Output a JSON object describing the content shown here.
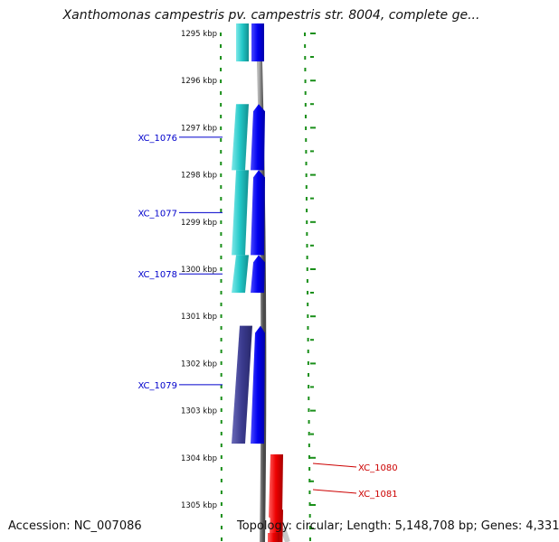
{
  "title": "Xanthomonas campestris pv. campestris str. 8004, complete ge...",
  "accession": {
    "label": "Accession:",
    "value": "NC_007086"
  },
  "topology": {
    "label": "Topology:",
    "value": "circular;",
    "length_label": "Length:",
    "length_value": "5,148,708 bp;",
    "genes_label": "Genes:",
    "genes_value": "4,331"
  },
  "ruler": {
    "labels": [
      "1295 kbp",
      "1296 kbp",
      "1297 kbp",
      "1298 kbp",
      "1299 kbp",
      "1300 kbp",
      "1301 kbp",
      "1302 kbp",
      "1303 kbp",
      "1304 kbp",
      "1305 kbp"
    ],
    "kbp": [
      1295,
      1296,
      1297,
      1298,
      1299,
      1300,
      1301,
      1302,
      1303,
      1304,
      1305
    ]
  },
  "genes": [
    {
      "label": "XC_1076",
      "strand": "forward",
      "start_kbp": 1296.5,
      "end_kbp": 1297.9,
      "color": "#0000ee",
      "label_color": "#0000cc"
    },
    {
      "label": "XC_1077",
      "strand": "forward",
      "start_kbp": 1297.9,
      "end_kbp": 1299.7,
      "color": "#0000ee",
      "label_color": "#0000cc"
    },
    {
      "label": "XC_1078",
      "strand": "forward",
      "start_kbp": 1299.7,
      "end_kbp": 1300.5,
      "color": "#0000ee",
      "label_color": "#0000cc"
    },
    {
      "label": "XC_1079",
      "strand": "forward",
      "start_kbp": 1301.2,
      "end_kbp": 1303.7,
      "color": "#0000ee",
      "label_color": "#0000cc"
    },
    {
      "label": "XC_1080",
      "strand": "reverse",
      "start_kbp": 1303.9,
      "end_kbp": 1305.1,
      "color": "#ee0000",
      "label_color": "#cc0000"
    },
    {
      "label": "XC_1081",
      "strand": "reverse",
      "start_kbp": 1305.1,
      "end_kbp": 1306.0,
      "color": "#ee0000",
      "label_color": "#cc0000"
    }
  ],
  "colors": {
    "cds_forward": "#22c7c7",
    "cds_forward_dark": "#3b3b8f",
    "gene_forward": "#0000ee",
    "gene_reverse": "#ee0000",
    "backbone": "#7a7a7a",
    "tick": "#1a8f1a"
  }
}
